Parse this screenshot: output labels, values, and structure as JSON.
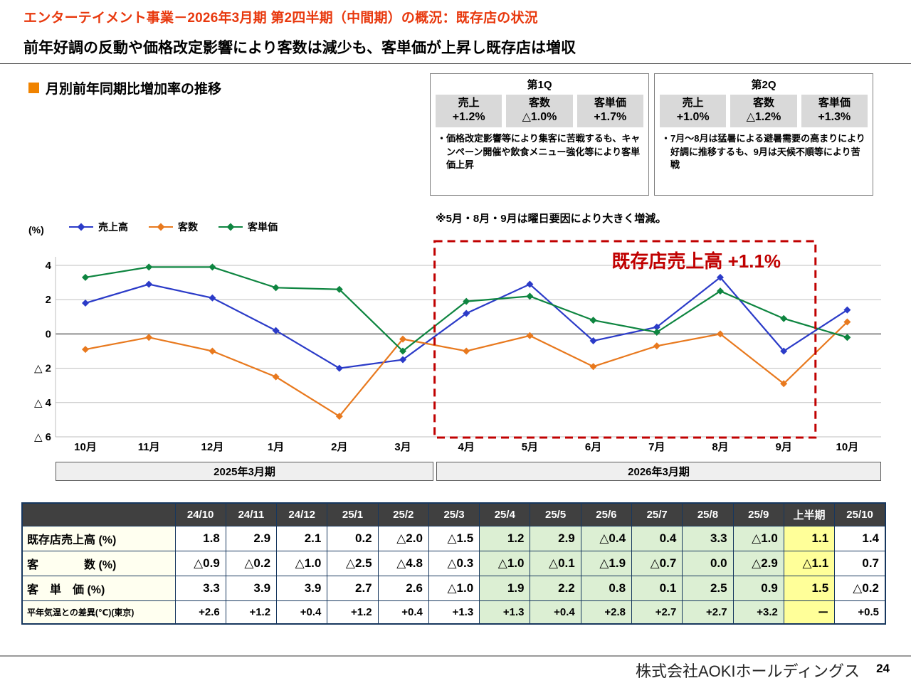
{
  "header": {
    "title": "エンターテイメント事業－2026年3月期 第2四半期（中間期）の概況：既存店の状況",
    "subtitle": "前年好調の反動や価格改定影響により客数は減少も、客単価が上昇し既存店は増収"
  },
  "section": {
    "title": "月別前年同期比増加率の推移"
  },
  "quarter_boxes": [
    {
      "title": "第1Q",
      "metrics": [
        {
          "label": "売上",
          "value": "+1.2%"
        },
        {
          "label": "客数",
          "value": "△1.0%"
        },
        {
          "label": "客単価",
          "value": "+1.7%"
        }
      ],
      "note": "・価格改定影響等により集客に苦戦するも、キャンペーン開催や飲食メニュー強化等により客単価上昇"
    },
    {
      "title": "第2Q",
      "metrics": [
        {
          "label": "売上",
          "value": "+1.0%"
        },
        {
          "label": "客数",
          "value": "△1.2%"
        },
        {
          "label": "客単価",
          "value": "+1.3%"
        }
      ],
      "note": "・7月～8月は猛暑による避暑需要の高まりにより好調に推移するも、9月は天候不順等により苦戦"
    }
  ],
  "chart_note": "※5月・8月・9月は曜日要因により大きく増減。",
  "chart_annotation": "既存店売上高 +1.1%",
  "chart_data": {
    "type": "line",
    "unit_label": "(%)",
    "categories": [
      "10月",
      "11月",
      "12月",
      "1月",
      "2月",
      "3月",
      "4月",
      "5月",
      "6月",
      "7月",
      "8月",
      "9月",
      "10月"
    ],
    "series": [
      {
        "name": "売上高",
        "color": "#2b3bc8",
        "values": [
          1.8,
          2.9,
          2.1,
          0.2,
          -2.0,
          -1.5,
          1.2,
          2.9,
          -0.4,
          0.4,
          3.3,
          -1.0,
          1.4
        ]
      },
      {
        "name": "客数",
        "color": "#e8791e",
        "values": [
          -0.9,
          -0.2,
          -1.0,
          -2.5,
          -4.8,
          -0.3,
          -1.0,
          -0.1,
          -1.9,
          -0.7,
          0.0,
          -2.9,
          0.7
        ]
      },
      {
        "name": "客単価",
        "color": "#0e8540",
        "values": [
          3.3,
          3.9,
          3.9,
          2.7,
          2.6,
          -1.0,
          1.9,
          2.2,
          0.8,
          0.1,
          2.5,
          0.9,
          -0.2
        ]
      }
    ],
    "ylim": [
      -6,
      4
    ],
    "yticks": [
      4,
      2,
      0,
      -2,
      -4,
      -6
    ],
    "ytick_labels": [
      "4",
      "2",
      "0",
      "△ 2",
      "△ 4",
      "△ 6"
    ],
    "grid": true,
    "legend_position": "top-left",
    "highlight_range": {
      "from_index": 6,
      "to_index": 11,
      "color": "#c00000"
    },
    "period_bands": [
      {
        "label": "2025年3月期"
      },
      {
        "label": "2026年3月期"
      }
    ]
  },
  "table": {
    "columns": [
      "24/10",
      "24/11",
      "24/12",
      "25/1",
      "25/2",
      "25/3",
      "25/4",
      "25/5",
      "25/6",
      "25/7",
      "25/8",
      "25/9",
      "上半期",
      "25/10"
    ],
    "rows": [
      {
        "label": "既存店売上高 (%)",
        "values": [
          "1.8",
          "2.9",
          "2.1",
          "0.2",
          "△2.0",
          "△1.5",
          "1.2",
          "2.9",
          "△0.4",
          "0.4",
          "3.3",
          "△1.0",
          "1.1",
          "1.4"
        ]
      },
      {
        "label": "客　　　　数 (%)",
        "values": [
          "△0.9",
          "△0.2",
          "△1.0",
          "△2.5",
          "△4.8",
          "△0.3",
          "△1.0",
          "△0.1",
          "△1.9",
          "△0.7",
          "0.0",
          "△2.9",
          "△1.1",
          "0.7"
        ]
      },
      {
        "label": "客　単　価 (%)",
        "values": [
          "3.3",
          "3.9",
          "3.9",
          "2.7",
          "2.6",
          "△1.0",
          "1.9",
          "2.2",
          "0.8",
          "0.1",
          "2.5",
          "0.9",
          "1.5",
          "△0.2"
        ]
      },
      {
        "label": "平年気温との差異(℃)(東京)",
        "values": [
          "+2.6",
          "+1.2",
          "+0.4",
          "+1.2",
          "+0.4",
          "+1.3",
          "+1.3",
          "+0.4",
          "+2.8",
          "+2.7",
          "+2.7",
          "+3.2",
          "ー",
          "+0.5"
        ]
      }
    ]
  },
  "footer": {
    "company": "株式会社AOKIホールディングス",
    "page": "24"
  }
}
